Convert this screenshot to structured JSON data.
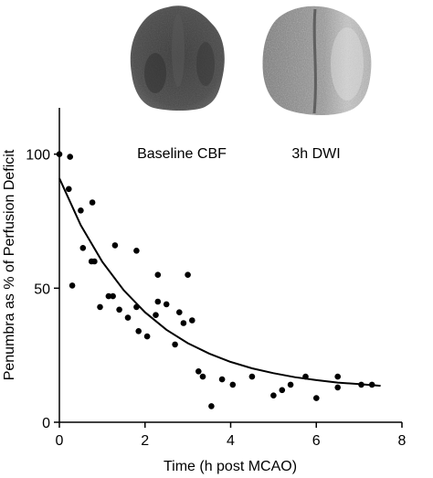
{
  "chart_data": {
    "type": "scatter",
    "title": "",
    "xlabel": "Time (h post MCAO)",
    "ylabel": "Penumbra as % of Perfusion Deficit",
    "xlim": [
      0,
      8
    ],
    "ylim": [
      0,
      120
    ],
    "xticks": [
      0,
      2,
      4,
      6,
      8
    ],
    "yticks": [
      0,
      50,
      100
    ],
    "grid": false,
    "legend": "none",
    "marker_color": "#000000",
    "series": [
      {
        "points": [
          {
            "x": 0.0,
            "y": 100
          },
          {
            "x": 0.25,
            "y": 99
          },
          {
            "x": 0.22,
            "y": 87
          },
          {
            "x": 0.5,
            "y": 79
          },
          {
            "x": 0.77,
            "y": 82
          },
          {
            "x": 0.55,
            "y": 65
          },
          {
            "x": 0.75,
            "y": 60
          },
          {
            "x": 0.82,
            "y": 60
          },
          {
            "x": 0.3,
            "y": 51
          },
          {
            "x": 0.95,
            "y": 43
          },
          {
            "x": 1.15,
            "y": 47
          },
          {
            "x": 1.25,
            "y": 47
          },
          {
            "x": 1.3,
            "y": 66
          },
          {
            "x": 1.4,
            "y": 42
          },
          {
            "x": 1.6,
            "y": 39
          },
          {
            "x": 1.8,
            "y": 43
          },
          {
            "x": 1.8,
            "y": 64
          },
          {
            "x": 1.85,
            "y": 34
          },
          {
            "x": 2.05,
            "y": 32
          },
          {
            "x": 2.25,
            "y": 40
          },
          {
            "x": 2.3,
            "y": 45
          },
          {
            "x": 2.3,
            "y": 55
          },
          {
            "x": 2.5,
            "y": 44
          },
          {
            "x": 2.7,
            "y": 29
          },
          {
            "x": 2.8,
            "y": 41
          },
          {
            "x": 2.9,
            "y": 37
          },
          {
            "x": 3.0,
            "y": 55
          },
          {
            "x": 3.1,
            "y": 38
          },
          {
            "x": 3.25,
            "y": 19
          },
          {
            "x": 3.35,
            "y": 17
          },
          {
            "x": 3.55,
            "y": 6
          },
          {
            "x": 3.8,
            "y": 16
          },
          {
            "x": 4.05,
            "y": 14
          },
          {
            "x": 4.5,
            "y": 17
          },
          {
            "x": 5.0,
            "y": 10
          },
          {
            "x": 5.2,
            "y": 12
          },
          {
            "x": 5.4,
            "y": 14
          },
          {
            "x": 5.75,
            "y": 17
          },
          {
            "x": 6.0,
            "y": 9
          },
          {
            "x": 6.5,
            "y": 17
          },
          {
            "x": 6.5,
            "y": 13
          },
          {
            "x": 7.05,
            "y": 14
          },
          {
            "x": 7.3,
            "y": 14
          }
        ]
      }
    ],
    "fit": {
      "type": "exponential decay",
      "x": [
        0,
        0.5,
        1,
        1.5,
        2,
        2.5,
        3,
        3.5,
        4,
        4.5,
        5,
        5.5,
        6,
        6.5,
        7,
        7.5
      ],
      "y": [
        91.0,
        73.5,
        59.9,
        49.3,
        41.0,
        34.5,
        29.5,
        25.6,
        22.5,
        20.1,
        18.3,
        16.8,
        15.7,
        14.8,
        14.2,
        13.6
      ]
    },
    "insets": [
      {
        "label": "Baseline CBF",
        "icon": "brain-perfusion-map-icon"
      },
      {
        "label": "3h DWI",
        "icon": "brain-diffusion-map-icon"
      }
    ]
  }
}
